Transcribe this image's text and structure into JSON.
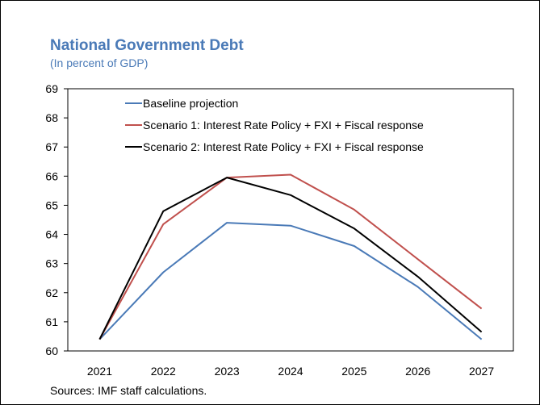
{
  "chart_data": {
    "type": "line",
    "title": "National Government Debt",
    "subtitle": "(In percent of GDP)",
    "source": "Sources: IMF staff calculations.",
    "x": [
      "2021",
      "2022",
      "2023",
      "2024",
      "2025",
      "2026",
      "2027"
    ],
    "ylim": [
      60,
      69
    ],
    "yticks": [
      60,
      61,
      62,
      63,
      64,
      65,
      66,
      67,
      68,
      69
    ],
    "series": [
      {
        "name": "Baseline projection",
        "color": "#4a7ab7",
        "values": [
          60.4,
          62.7,
          64.4,
          64.3,
          63.6,
          62.2,
          60.4
        ]
      },
      {
        "name": "Scenario 1: Interest Rate Policy + FXI + Fiscal response",
        "color": "#c0504d",
        "values": [
          60.4,
          64.35,
          65.95,
          66.05,
          64.85,
          63.15,
          61.45
        ]
      },
      {
        "name": "Scenario 2: Interest Rate Policy + FXI + Fiscal response",
        "color": "#000000",
        "values": [
          60.4,
          64.8,
          65.95,
          65.35,
          64.2,
          62.55,
          60.65
        ]
      }
    ],
    "legend_position": "top-left",
    "grid": false
  }
}
